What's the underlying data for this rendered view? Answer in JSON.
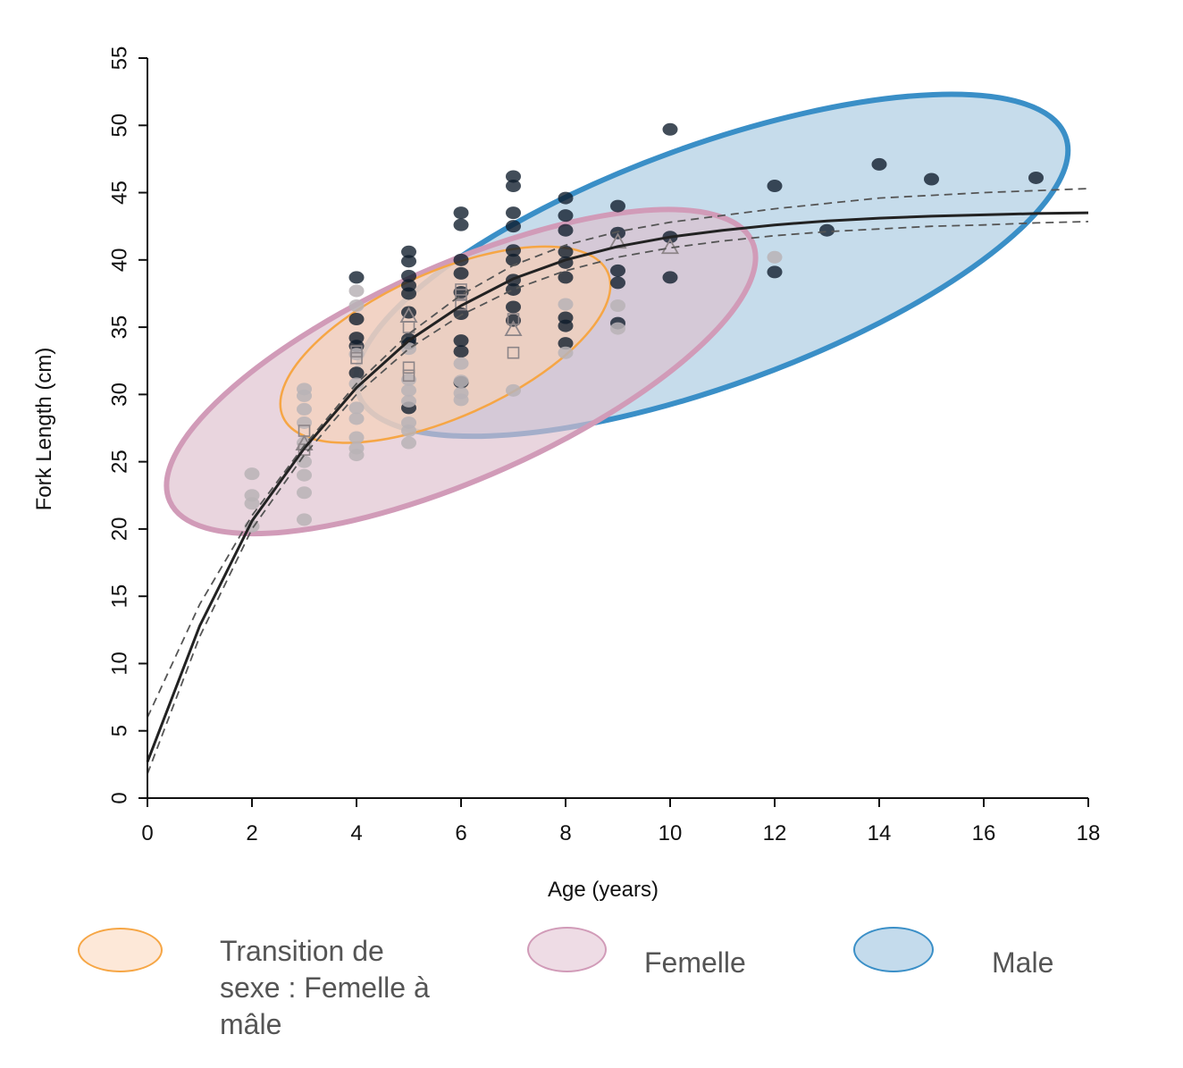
{
  "chart_data": {
    "type": "scatter",
    "xlabel": "Age (years)",
    "ylabel": "Fork Length (cm)",
    "xlim": [
      0,
      18
    ],
    "ylim": [
      0,
      55
    ],
    "xticks": [
      0,
      2,
      4,
      6,
      8,
      10,
      12,
      14,
      16,
      18
    ],
    "yticks": [
      0,
      5,
      10,
      15,
      20,
      25,
      30,
      35,
      40,
      45,
      50,
      55
    ],
    "series": [
      {
        "marker": "filled-circle-dark",
        "color": "#0d1b2a",
        "points": [
          [
            4,
            38.7
          ],
          [
            4,
            35.6
          ],
          [
            4,
            34.2
          ],
          [
            4,
            33.6
          ],
          [
            4,
            31.6
          ],
          [
            5,
            40.6
          ],
          [
            5,
            39.9
          ],
          [
            5,
            38.8
          ],
          [
            5,
            38.1
          ],
          [
            5,
            37.5
          ],
          [
            5,
            36.1
          ],
          [
            5,
            34.1
          ],
          [
            5,
            33.8
          ],
          [
            5,
            29.0
          ],
          [
            6,
            43.5
          ],
          [
            6,
            42.6
          ],
          [
            6,
            40.0
          ],
          [
            6,
            39.0
          ],
          [
            6,
            37.6
          ],
          [
            6,
            36.0
          ],
          [
            6,
            34.0
          ],
          [
            6,
            33.2
          ],
          [
            6,
            30.9
          ],
          [
            7,
            46.2
          ],
          [
            7,
            45.5
          ],
          [
            7,
            43.5
          ],
          [
            7,
            42.5
          ],
          [
            7,
            40.7
          ],
          [
            7,
            40.0
          ],
          [
            7,
            38.5
          ],
          [
            7,
            37.8
          ],
          [
            7,
            36.5
          ],
          [
            7,
            35.5
          ],
          [
            8,
            44.6
          ],
          [
            8,
            43.3
          ],
          [
            8,
            42.2
          ],
          [
            8,
            40.6
          ],
          [
            8,
            39.8
          ],
          [
            8,
            38.7
          ],
          [
            8,
            35.7
          ],
          [
            8,
            35.1
          ],
          [
            8,
            33.8
          ],
          [
            9,
            44.0
          ],
          [
            9,
            42.0
          ],
          [
            9,
            39.2
          ],
          [
            9,
            38.3
          ],
          [
            9,
            35.3
          ],
          [
            10,
            49.7
          ],
          [
            10,
            41.7
          ],
          [
            10,
            38.7
          ],
          [
            12,
            45.5
          ],
          [
            12,
            39.1
          ],
          [
            13,
            42.2
          ],
          [
            14,
            47.1
          ],
          [
            15,
            46.0
          ],
          [
            17,
            46.1
          ]
        ]
      },
      {
        "marker": "filled-circle-light",
        "color": "#b9b3b6",
        "points": [
          [
            2,
            24.1
          ],
          [
            2,
            22.5
          ],
          [
            2,
            21.9
          ],
          [
            2,
            20.2
          ],
          [
            3,
            30.4
          ],
          [
            3,
            29.9
          ],
          [
            3,
            28.9
          ],
          [
            3,
            27.9
          ],
          [
            3,
            26.4
          ],
          [
            3,
            25.0
          ],
          [
            3,
            24.0
          ],
          [
            3,
            22.7
          ],
          [
            3,
            20.7
          ],
          [
            4,
            37.7
          ],
          [
            4,
            36.6
          ],
          [
            4,
            33.0
          ],
          [
            4,
            30.8
          ],
          [
            4,
            29.0
          ],
          [
            4,
            28.2
          ],
          [
            4,
            26.8
          ],
          [
            4,
            26.0
          ],
          [
            4,
            25.5
          ],
          [
            5,
            33.4
          ],
          [
            5,
            31.1
          ],
          [
            5,
            30.3
          ],
          [
            5,
            29.5
          ],
          [
            5,
            27.9
          ],
          [
            5,
            27.3
          ],
          [
            5,
            26.4
          ],
          [
            6,
            32.3
          ],
          [
            6,
            31.0
          ],
          [
            6,
            30.1
          ],
          [
            6,
            29.6
          ],
          [
            7,
            30.3
          ],
          [
            8,
            36.7
          ],
          [
            8,
            33.1
          ],
          [
            9,
            36.6
          ],
          [
            9,
            34.9
          ],
          [
            12,
            40.2
          ]
        ]
      },
      {
        "marker": "open-square",
        "color": "#8d8588",
        "points": [
          [
            3,
            27.3
          ],
          [
            3,
            25.9
          ],
          [
            4,
            33.2
          ],
          [
            4,
            32.7
          ],
          [
            5,
            35.0
          ],
          [
            5,
            32.0
          ],
          [
            5,
            31.4
          ],
          [
            6,
            37.8
          ],
          [
            6,
            37.4
          ],
          [
            6,
            36.7
          ],
          [
            7,
            35.6
          ],
          [
            7,
            33.1
          ]
        ]
      },
      {
        "marker": "open-triangle",
        "color": "#8d8588",
        "points": [
          [
            3,
            26.3
          ],
          [
            5,
            35.8
          ],
          [
            7,
            34.8
          ],
          [
            9,
            41.3
          ],
          [
            10,
            40.9
          ]
        ]
      }
    ],
    "curves": [
      {
        "style": "solid",
        "color": "#222222",
        "points": [
          [
            0,
            2.7
          ],
          [
            1,
            12.8
          ],
          [
            2,
            20.6
          ],
          [
            3,
            26.0
          ],
          [
            4,
            30.5
          ],
          [
            5,
            34.0
          ],
          [
            6,
            36.6
          ],
          [
            7,
            38.6
          ],
          [
            8,
            40.0
          ],
          [
            9,
            41.0
          ],
          [
            10,
            41.7
          ],
          [
            11,
            42.2
          ],
          [
            12,
            42.6
          ],
          [
            13,
            42.9
          ],
          [
            14,
            43.1
          ],
          [
            15,
            43.25
          ],
          [
            16,
            43.35
          ],
          [
            17,
            43.45
          ],
          [
            18,
            43.5
          ]
        ]
      },
      {
        "style": "dashed",
        "color": "#555555",
        "points": [
          [
            0,
            6.0
          ],
          [
            1,
            14.4
          ],
          [
            2,
            21.0
          ],
          [
            3,
            26.2
          ],
          [
            4,
            30.8
          ],
          [
            5,
            34.5
          ],
          [
            6,
            37.4
          ],
          [
            7,
            39.6
          ],
          [
            8,
            41.1
          ],
          [
            9,
            42.1
          ],
          [
            10,
            42.8
          ],
          [
            11,
            43.3
          ],
          [
            12,
            43.8
          ],
          [
            13,
            44.2
          ],
          [
            14,
            44.6
          ],
          [
            15,
            44.8
          ],
          [
            16,
            45.0
          ],
          [
            17,
            45.15
          ],
          [
            18,
            45.3
          ]
        ]
      },
      {
        "style": "dashed",
        "color": "#555555",
        "points": [
          [
            0,
            1.8
          ],
          [
            1,
            12.0
          ],
          [
            2,
            20.0
          ],
          [
            3,
            25.5
          ],
          [
            4,
            30.0
          ],
          [
            5,
            33.4
          ],
          [
            6,
            35.9
          ],
          [
            7,
            37.8
          ],
          [
            8,
            39.2
          ],
          [
            9,
            40.2
          ],
          [
            10,
            40.9
          ],
          [
            11,
            41.4
          ],
          [
            12,
            41.8
          ],
          [
            13,
            42.1
          ],
          [
            14,
            42.3
          ],
          [
            15,
            42.5
          ],
          [
            16,
            42.6
          ],
          [
            17,
            42.75
          ],
          [
            18,
            42.85
          ]
        ]
      }
    ],
    "regions": [
      {
        "id": "male",
        "label": "Male",
        "fill": "#a7c9e0",
        "stroke": "#3a8fc7",
        "center": [
          10.8,
          39.6
        ],
        "rx_years": 7.2,
        "ry_cm": 8.9,
        "angle_deg": -20
      },
      {
        "id": "femelle",
        "label": "Femelle",
        "fill": "#ddbfcd",
        "stroke": "#d19bb8",
        "center": [
          6.0,
          31.7
        ],
        "rx_years": 6.1,
        "ry_cm": 7.9,
        "angle_deg": -24
      },
      {
        "id": "transition",
        "label": "Transition de sexe : Femelle à mâle",
        "fill": "#f7d2b7",
        "stroke": "#f6a645",
        "center": [
          5.7,
          33.7
        ],
        "rx_years": 3.4,
        "ry_cm": 5.4,
        "angle_deg": -24
      }
    ]
  },
  "legend": {
    "items": [
      {
        "label": "Transition de sexe : Femelle à mâle",
        "lines": [
          "Transition de",
          "sexe : Femelle à",
          "mâle"
        ],
        "fill": "#fde8d8",
        "stroke": "#f6a645"
      },
      {
        "label": "Femelle",
        "lines": [
          "Femelle"
        ],
        "fill": "#eedce5",
        "stroke": "#d19bb8"
      },
      {
        "label": "Male",
        "lines": [
          "Male"
        ],
        "fill": "#c4dbec",
        "stroke": "#3a8fc7"
      }
    ]
  }
}
